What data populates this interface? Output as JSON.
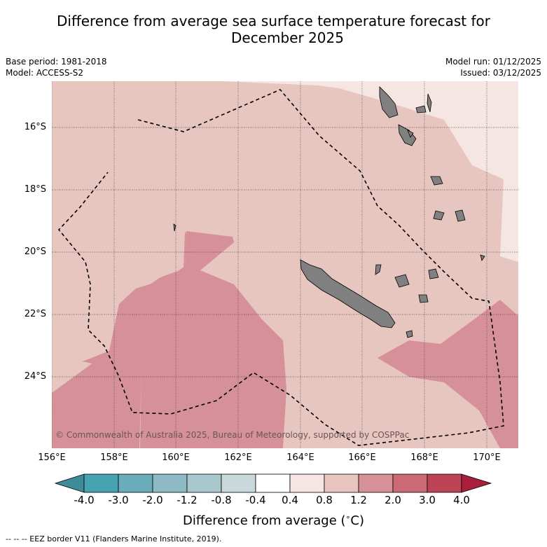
{
  "title_line1": "Difference from average sea surface temperature forecast for",
  "title_line2": "December 2025",
  "base_period": "Base period: 1981-2018",
  "model": "Model: ACCESS-S2",
  "model_run": "Model run: 01/12/2025",
  "issued": "Issued: 03/12/2025",
  "lat_labels": [
    "16°S",
    "18°S",
    "20°S",
    "22°S",
    "24°S"
  ],
  "lon_labels": [
    "156°E",
    "158°E",
    "160°E",
    "162°E",
    "164°E",
    "166°E",
    "168°E",
    "170°E"
  ],
  "copyright": "© Commonwealth of Australia 2025, Bureau of Meteorology, supported by COSPPac",
  "colorbar": {
    "ticks": [
      "-4.0",
      "-3.0",
      "-2.0",
      "-1.2",
      "-0.8",
      "-0.4",
      "0.4",
      "0.8",
      "1.2",
      "2.0",
      "3.0",
      "4.0"
    ],
    "colors": [
      "#3e8c99",
      "#45a3b2",
      "#6bacbb",
      "#8ebac5",
      "#a9c8cd",
      "#c9d8da",
      "#ffffff",
      "#f5e6e3",
      "#e8c4bf",
      "#d69097",
      "#cb6a75",
      "#bd4455",
      "#a81e3c"
    ],
    "label": "Difference from average (",
    "unit_symbol": "∘",
    "unit": "C)"
  },
  "footer": "--  --  -- EEZ border V11 (Flanders Marine Institute, 2019).",
  "legend_colors": {
    "light": "#e8c6c0",
    "medium": "#d69097",
    "pale": "#f5e6e3",
    "land": "#808080"
  }
}
